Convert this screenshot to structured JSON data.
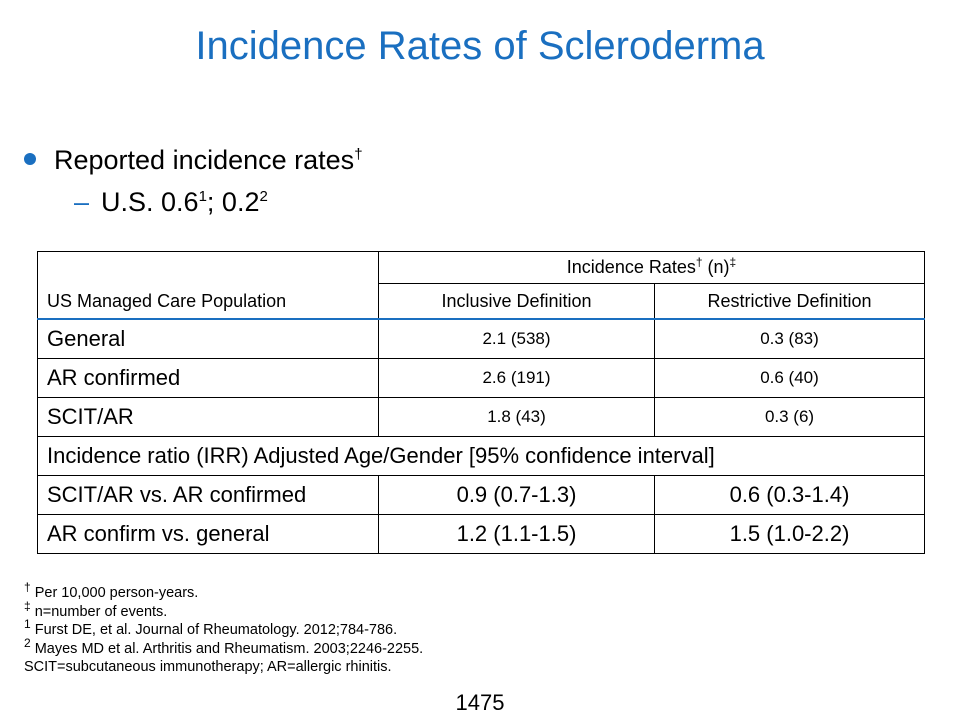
{
  "title": "Incidence Rates of Scleroderma",
  "bullet": {
    "text": "Reported incidence rates",
    "sup": "†",
    "sub": {
      "prefix": "U.S. 0.6",
      "sup1": "1",
      "middle": "; 0.2",
      "sup2": "2"
    }
  },
  "table": {
    "corner_label": "US Managed Care Population",
    "group_header": {
      "text": "Incidence Rates",
      "sup1": "†",
      "mid": " (n)",
      "sup2": "‡"
    },
    "col_headers": [
      "Inclusive Definition",
      "Restrictive Definition"
    ],
    "rows": [
      {
        "label": "General",
        "inclusive": "2.1 (538)",
        "restrictive": "0.3 (83)"
      },
      {
        "label": "AR confirmed",
        "inclusive": "2.6 (191)",
        "restrictive": "0.6 (40)"
      },
      {
        "label": "SCIT/AR",
        "inclusive": "1.8 (43)",
        "restrictive": "0.3 (6)"
      }
    ],
    "span_row": "Incidence ratio (IRR) Adjusted Age/Gender [95% confidence interval]",
    "ratio_rows": [
      {
        "label": "SCIT/AR vs. AR confirmed",
        "inclusive": "0.9 (0.7-1.3)",
        "restrictive": "0.6 (0.3-1.4)"
      },
      {
        "label": "AR confirm vs. general",
        "inclusive": "1.2 (1.1-1.5)",
        "restrictive": "1.5 (1.0-2.2)"
      }
    ]
  },
  "footnotes": [
    {
      "mark": "†",
      "text": " Per 10,000 person-years."
    },
    {
      "mark": "‡",
      "text": " n=number of events."
    },
    {
      "mark": "1",
      "text": " Furst DE, et al. Journal of Rheumatology. 2012;784-786."
    },
    {
      "mark": "2",
      "text": " Mayes MD et al. Arthritis and Rheumatism. 2003;2246-2255."
    },
    {
      "mark": "",
      "text": "SCIT=subcutaneous immunotherapy; AR=allergic rhinitis."
    }
  ],
  "page_number": "1475",
  "colors": {
    "accent": "#1a6fc0"
  }
}
